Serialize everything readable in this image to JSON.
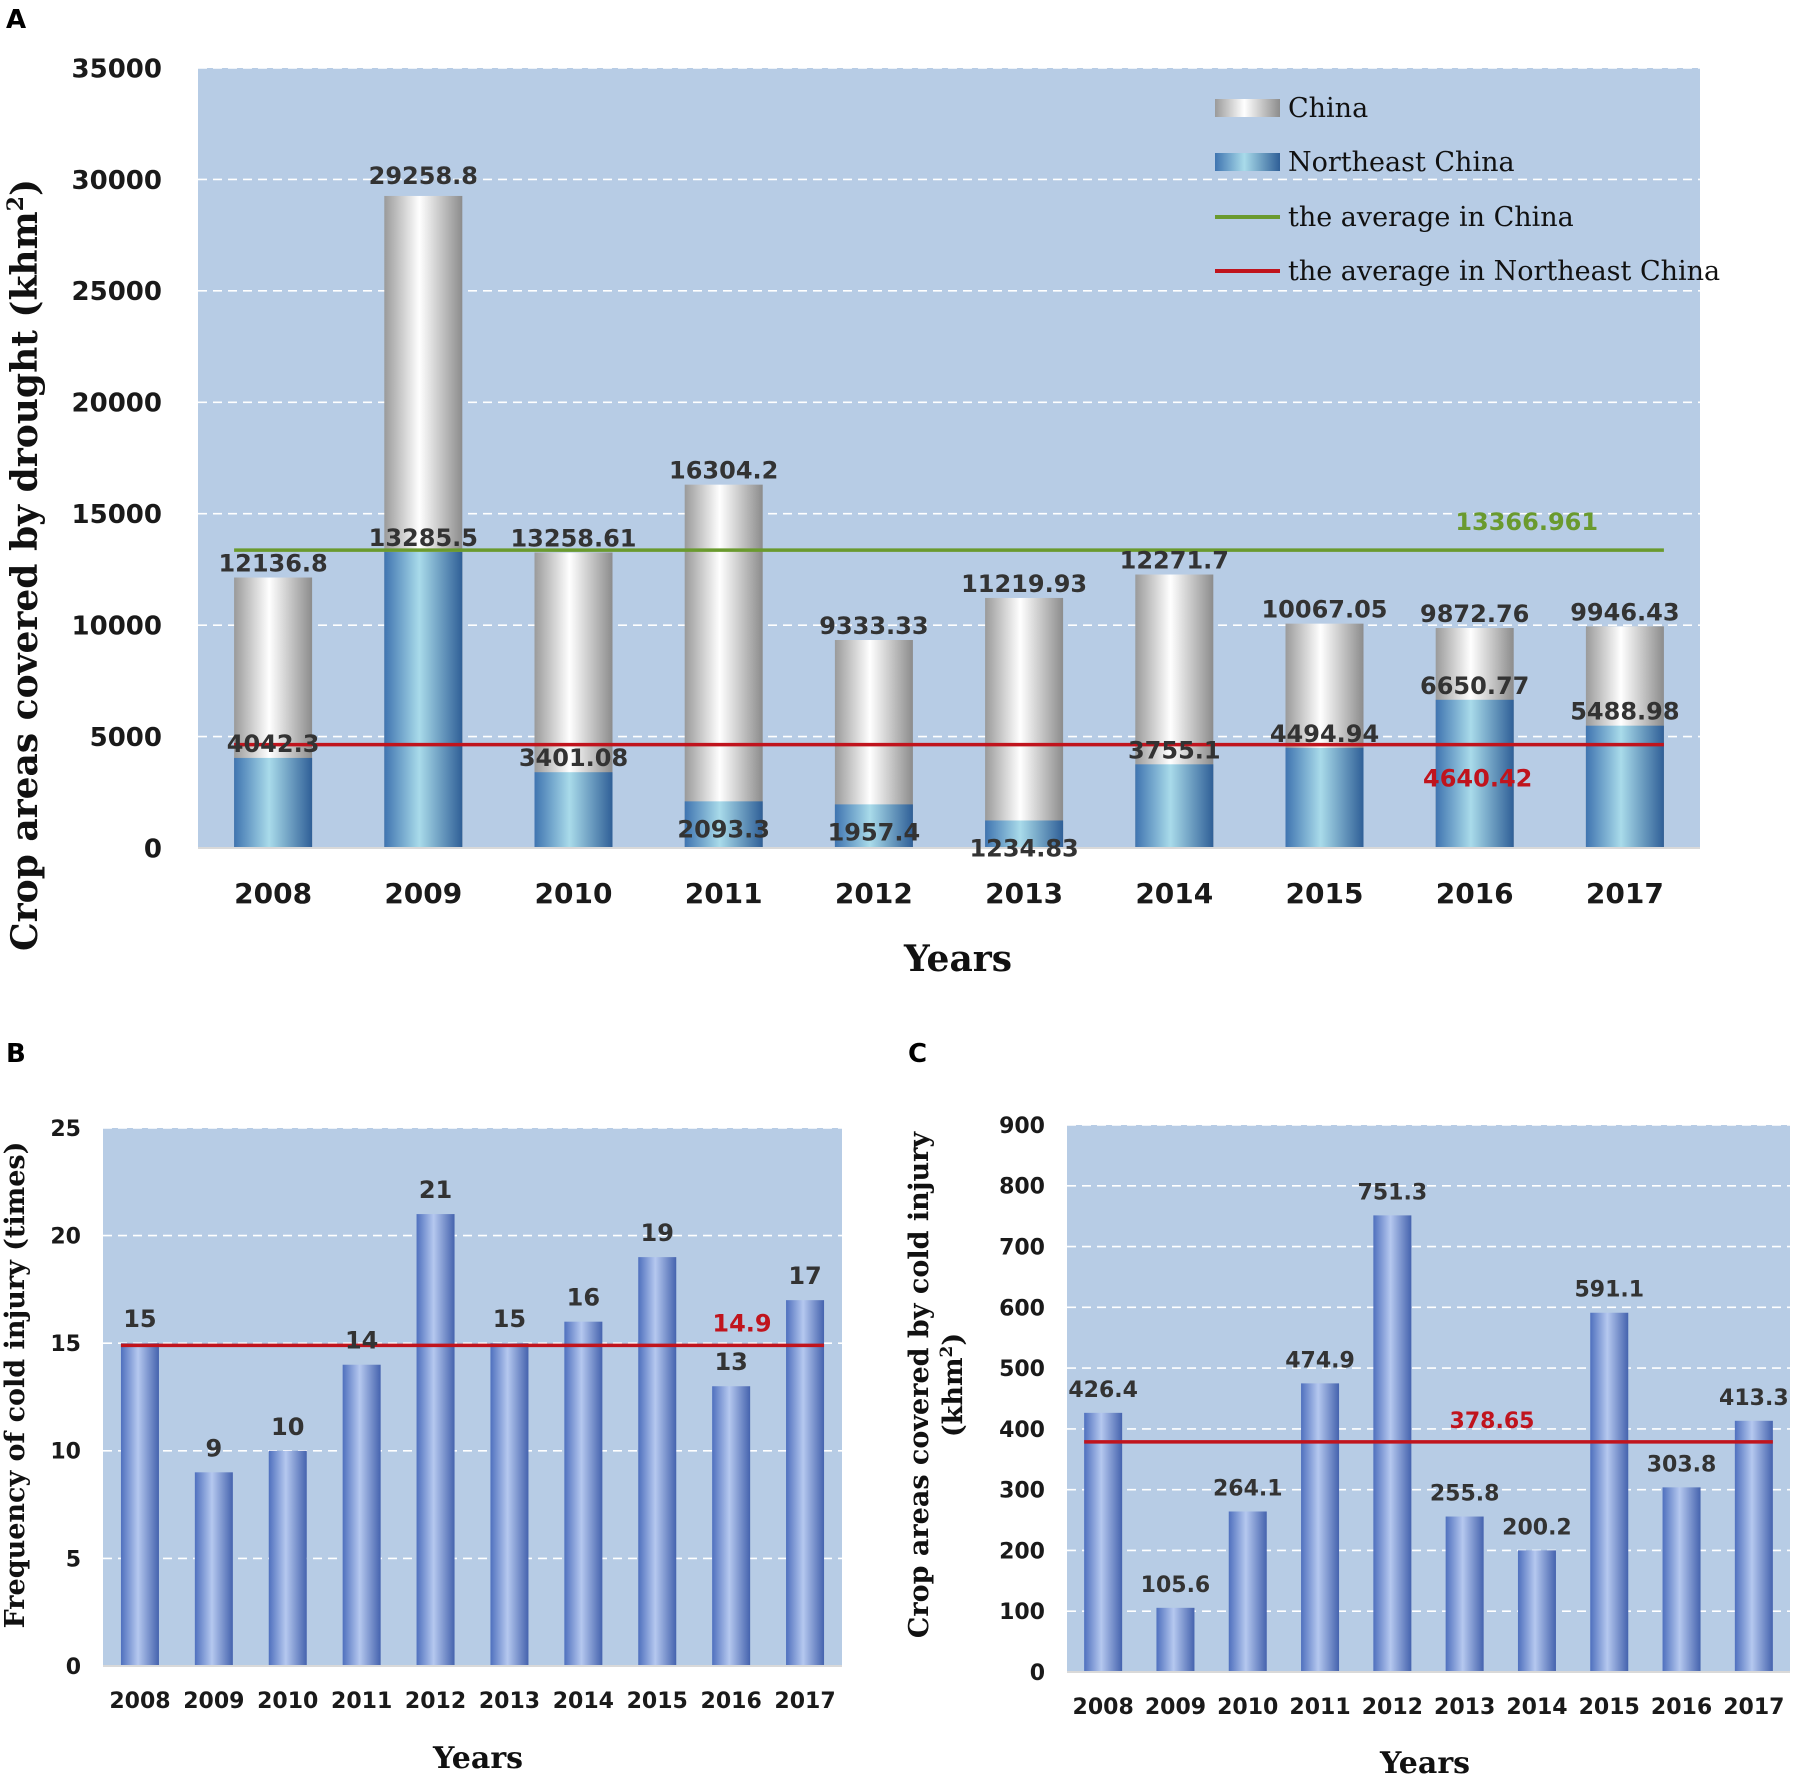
{
  "colors": {
    "plot_bg": "#b7cce5",
    "grid": "#ffffff",
    "avg_china": "#6a9a2e",
    "avg_northeast": "#c0141d",
    "china_bar": "#e3e3e3",
    "northeast_bar": "#5f9fc8",
    "cold_bar": "#7e9bd8"
  },
  "chart_data": [
    {
      "panel": "A",
      "type": "bar",
      "categories": [
        "2008",
        "2009",
        "2010",
        "2011",
        "2012",
        "2013",
        "2014",
        "2015",
        "2016",
        "2017"
      ],
      "series": [
        {
          "name": "China",
          "values": [
            12136.8,
            29258.8,
            13258.61,
            16304.2,
            9333.33,
            11219.93,
            12271.7,
            10067.05,
            9872.76,
            9946.43
          ],
          "labels": [
            "12136.8",
            "29258.8",
            "13258.61",
            "16304.2",
            "9333.33",
            "11219.93",
            "12271.7",
            "10067.05",
            "9872.76",
            "9946.43"
          ]
        },
        {
          "name": "Northeast China",
          "values": [
            4042.3,
            13285.5,
            3401.08,
            2093.3,
            1957.4,
            1234.83,
            3755.1,
            4494.94,
            6650.77,
            5488.98
          ],
          "labels": [
            "4042.3",
            "13285.5",
            "3401.08",
            "2093.3",
            "1957.4",
            "1234.83",
            "3755.1",
            "4494.94",
            "6650.77",
            "5488.98"
          ]
        }
      ],
      "averages": [
        {
          "name": "the average in China",
          "value": 13366.961,
          "label": "13366.961"
        },
        {
          "name": "the average in Northeast China",
          "value": 4640.42,
          "label": "4640.42"
        }
      ],
      "ylim": [
        0,
        35000
      ],
      "yticks": [
        "0",
        "5000",
        "10000",
        "15000",
        "20000",
        "25000",
        "30000",
        "35000"
      ],
      "ylabel": "Crop areas covered by drought (khm",
      "ylabel_sup": "2",
      "ylabel_close": ")",
      "xlabel": "Years",
      "legend_position": "top-right",
      "grid": true
    },
    {
      "panel": "B",
      "type": "bar",
      "categories": [
        "2008",
        "2009",
        "2010",
        "2011",
        "2012",
        "2013",
        "2014",
        "2015",
        "2016",
        "2017"
      ],
      "values": [
        15,
        9,
        10,
        14,
        21,
        15,
        16,
        19,
        13,
        17
      ],
      "labels": [
        "15",
        "9",
        "10",
        "14",
        "21",
        "15",
        "16",
        "19",
        "13",
        "17"
      ],
      "average": {
        "value": 14.9,
        "label": "14.9"
      },
      "ylim": [
        0,
        25
      ],
      "yticks": [
        "0",
        "5",
        "10",
        "15",
        "20",
        "25"
      ],
      "ylabel": "Frequency of cold injury (times)",
      "xlabel": "Years",
      "grid": true
    },
    {
      "panel": "C",
      "type": "bar",
      "categories": [
        "2008",
        "2009",
        "2010",
        "2011",
        "2012",
        "2013",
        "2014",
        "2015",
        "2016",
        "2017"
      ],
      "values": [
        426.4,
        105.6,
        264.1,
        474.9,
        751.3,
        255.8,
        200.2,
        591.1,
        303.8,
        413.3
      ],
      "labels": [
        "426.4",
        "105.6",
        "264.1",
        "474.9",
        "751.3",
        "255.8",
        "200.2",
        "591.1",
        "303.8",
        "413.3"
      ],
      "average": {
        "value": 378.65,
        "label": "378.65"
      },
      "ylim": [
        0,
        900
      ],
      "yticks": [
        "0",
        "100",
        "200",
        "300",
        "400",
        "500",
        "600",
        "700",
        "800",
        "900"
      ],
      "ylabel_line1": "Crop areas covered by cold injury",
      "ylabel_line2": "(khm",
      "ylabel_line2_sup": "2",
      "ylabel_line2_close": ")",
      "xlabel": "Years",
      "grid": true
    }
  ]
}
